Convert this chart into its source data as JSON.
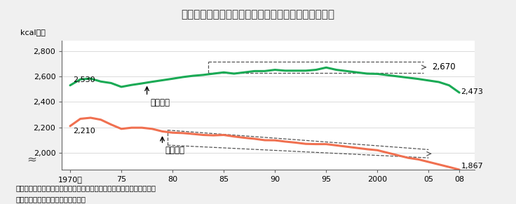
{
  "title": "図２－１　国民１人当たり摂取熱量・供給熱量の推移",
  "title_bg": "#f4aaaa",
  "ylabel": "kcal／日",
  "source_line1": "資料：農林水産省「食料需給表」、厚生労働省「国民健康・栄養調査」",
  "source_line2": "　注：供給熱量は年度ベースの数値",
  "supply_label": "供給熱量",
  "intake_label": "摂取熱量",
  "supply_color": "#1aaa55",
  "intake_color": "#f07050",
  "ylim_bottom": 1870,
  "ylim_top": 2900,
  "display_ymin": 1990,
  "years": [
    1970,
    1971,
    1972,
    1973,
    1974,
    1975,
    1976,
    1977,
    1978,
    1979,
    1980,
    1981,
    1982,
    1983,
    1984,
    1985,
    1986,
    1987,
    1988,
    1989,
    1990,
    1991,
    1992,
    1993,
    1994,
    1995,
    1996,
    1997,
    1998,
    1999,
    2000,
    2001,
    2002,
    2003,
    2004,
    2005,
    2006,
    2007,
    2008
  ],
  "supply_values": [
    2530,
    2577,
    2583,
    2560,
    2548,
    2518,
    2533,
    2545,
    2558,
    2570,
    2582,
    2595,
    2605,
    2612,
    2622,
    2632,
    2622,
    2632,
    2642,
    2642,
    2652,
    2645,
    2645,
    2645,
    2652,
    2670,
    2652,
    2642,
    2632,
    2622,
    2620,
    2610,
    2600,
    2590,
    2580,
    2568,
    2556,
    2530,
    2473
  ],
  "intake_values": [
    2210,
    2267,
    2275,
    2260,
    2222,
    2188,
    2197,
    2197,
    2188,
    2168,
    2158,
    2155,
    2148,
    2140,
    2137,
    2140,
    2128,
    2118,
    2110,
    2099,
    2098,
    2088,
    2080,
    2070,
    2068,
    2068,
    2058,
    2048,
    2038,
    2028,
    2020,
    2000,
    1980,
    1960,
    1948,
    1928,
    1908,
    1888,
    1867
  ],
  "xticks": [
    1970,
    1975,
    1980,
    1985,
    1990,
    1995,
    2000,
    2005,
    2008
  ],
  "xtick_labels": [
    "1970年",
    "75",
    "80",
    "85",
    "90",
    "95",
    "2000",
    "05",
    "08"
  ],
  "yticks": [
    2000,
    2200,
    2400,
    2600,
    2800
  ],
  "bg_color": "#f0f0f0",
  "plot_bg": "#ffffff"
}
